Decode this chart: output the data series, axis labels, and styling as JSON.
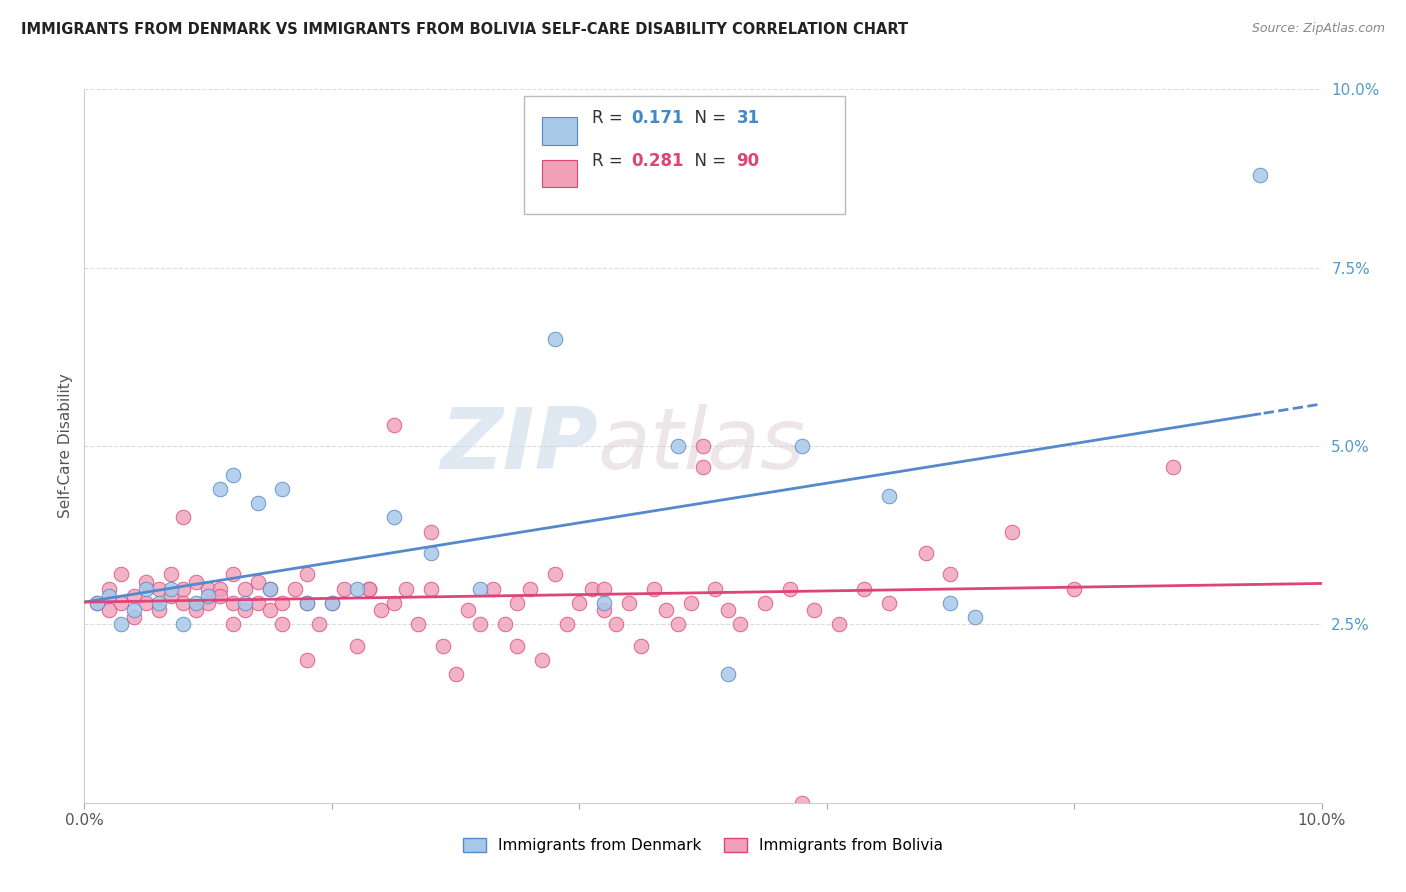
{
  "title": "IMMIGRANTS FROM DENMARK VS IMMIGRANTS FROM BOLIVIA SELF-CARE DISABILITY CORRELATION CHART",
  "source": "Source: ZipAtlas.com",
  "ylabel": "Self-Care Disability",
  "xlim": [
    0.0,
    0.1
  ],
  "ylim": [
    0.0,
    0.1
  ],
  "denmark_color": "#a8c8e8",
  "bolivia_color": "#f0a0b8",
  "denmark_line_color": "#5588cc",
  "bolivia_line_color": "#dd4477",
  "denmark_R": 0.171,
  "denmark_N": 31,
  "bolivia_R": 0.281,
  "bolivia_N": 90,
  "denmark_x": [
    0.001,
    0.002,
    0.003,
    0.004,
    0.005,
    0.006,
    0.007,
    0.008,
    0.009,
    0.01,
    0.011,
    0.012,
    0.013,
    0.014,
    0.015,
    0.016,
    0.018,
    0.02,
    0.022,
    0.025,
    0.028,
    0.032,
    0.038,
    0.042,
    0.048,
    0.052,
    0.058,
    0.065,
    0.07,
    0.072,
    0.095
  ],
  "denmark_y": [
    0.028,
    0.029,
    0.025,
    0.027,
    0.03,
    0.028,
    0.03,
    0.025,
    0.028,
    0.029,
    0.044,
    0.046,
    0.028,
    0.042,
    0.03,
    0.044,
    0.028,
    0.028,
    0.03,
    0.04,
    0.035,
    0.03,
    0.065,
    0.028,
    0.05,
    0.018,
    0.05,
    0.043,
    0.028,
    0.026,
    0.088
  ],
  "bolivia_x": [
    0.001,
    0.002,
    0.002,
    0.003,
    0.003,
    0.004,
    0.004,
    0.005,
    0.005,
    0.006,
    0.006,
    0.007,
    0.007,
    0.008,
    0.008,
    0.009,
    0.009,
    0.01,
    0.01,
    0.011,
    0.011,
    0.012,
    0.012,
    0.013,
    0.013,
    0.014,
    0.014,
    0.015,
    0.015,
    0.016,
    0.016,
    0.017,
    0.018,
    0.018,
    0.019,
    0.02,
    0.021,
    0.022,
    0.023,
    0.024,
    0.025,
    0.025,
    0.026,
    0.027,
    0.028,
    0.029,
    0.03,
    0.031,
    0.032,
    0.033,
    0.034,
    0.035,
    0.036,
    0.037,
    0.038,
    0.039,
    0.04,
    0.041,
    0.042,
    0.043,
    0.044,
    0.045,
    0.046,
    0.047,
    0.048,
    0.049,
    0.05,
    0.051,
    0.052,
    0.053,
    0.055,
    0.057,
    0.059,
    0.061,
    0.063,
    0.065,
    0.068,
    0.07,
    0.075,
    0.08,
    0.008,
    0.012,
    0.018,
    0.023,
    0.028,
    0.035,
    0.042,
    0.05,
    0.058,
    0.088
  ],
  "bolivia_y": [
    0.028,
    0.03,
    0.027,
    0.032,
    0.028,
    0.029,
    0.026,
    0.031,
    0.028,
    0.03,
    0.027,
    0.032,
    0.029,
    0.03,
    0.028,
    0.031,
    0.027,
    0.03,
    0.028,
    0.03,
    0.029,
    0.028,
    0.032,
    0.027,
    0.03,
    0.028,
    0.031,
    0.027,
    0.03,
    0.028,
    0.025,
    0.03,
    0.028,
    0.02,
    0.025,
    0.028,
    0.03,
    0.022,
    0.03,
    0.027,
    0.028,
    0.053,
    0.03,
    0.025,
    0.03,
    0.022,
    0.018,
    0.027,
    0.025,
    0.03,
    0.025,
    0.022,
    0.03,
    0.02,
    0.032,
    0.025,
    0.028,
    0.03,
    0.027,
    0.025,
    0.028,
    0.022,
    0.03,
    0.027,
    0.025,
    0.028,
    0.05,
    0.03,
    0.027,
    0.025,
    0.028,
    0.03,
    0.027,
    0.025,
    0.03,
    0.028,
    0.035,
    0.032,
    0.038,
    0.03,
    0.04,
    0.025,
    0.032,
    0.03,
    0.038,
    0.028,
    0.03,
    0.047,
    0.0,
    0.047
  ],
  "watermark_zip": "ZIP",
  "watermark_atlas": "atlas",
  "background_color": "#ffffff",
  "grid_color": "#dddddd",
  "legend_dk_label": "Immigrants from Denmark",
  "legend_bo_label": "Immigrants from Bolivia"
}
